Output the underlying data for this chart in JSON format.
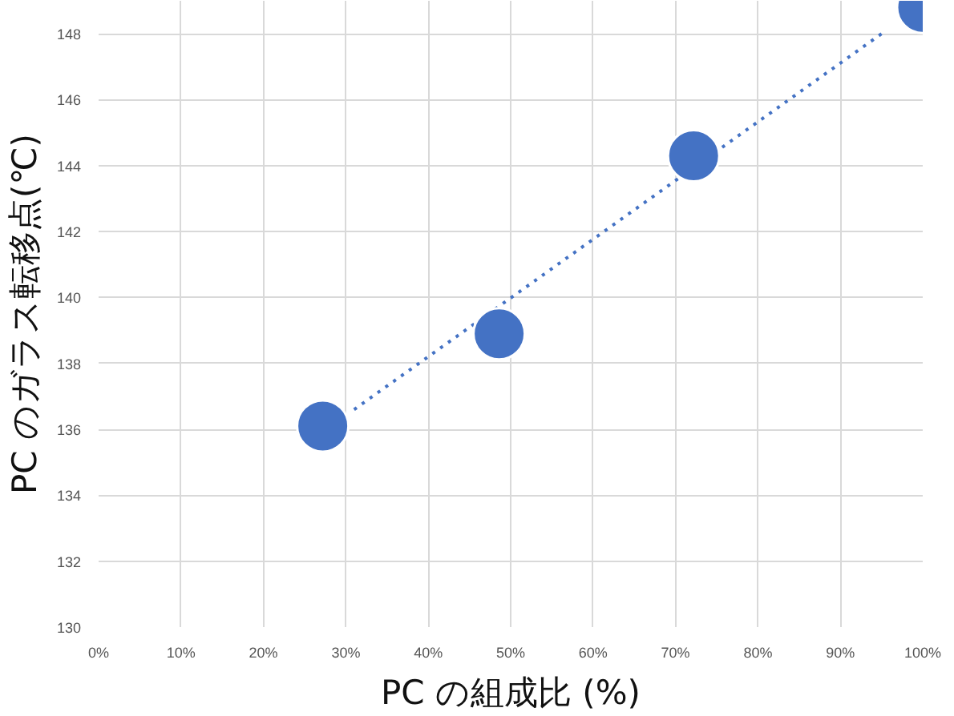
{
  "chart_data": {
    "type": "scatter",
    "xlabel": "PC の組成比 (%)",
    "ylabel": "PC のガラス転移点(℃)",
    "xlim": [
      0,
      100
    ],
    "ylim": [
      130,
      149
    ],
    "xticks": [
      {
        "value": 0,
        "label": "0%"
      },
      {
        "value": 10,
        "label": "10%"
      },
      {
        "value": 20,
        "label": "20%"
      },
      {
        "value": 30,
        "label": "30%"
      },
      {
        "value": 40,
        "label": "40%"
      },
      {
        "value": 50,
        "label": "50%"
      },
      {
        "value": 60,
        "label": "60%"
      },
      {
        "value": 70,
        "label": "70%"
      },
      {
        "value": 80,
        "label": "80%"
      },
      {
        "value": 90,
        "label": "90%"
      },
      {
        "value": 100,
        "label": "100%"
      }
    ],
    "yticks": [
      130,
      132,
      134,
      136,
      138,
      140,
      142,
      144,
      146,
      148
    ],
    "grid": true,
    "series": [
      {
        "type": "line",
        "color": "#4472c4",
        "x": [
          31,
          95
        ],
        "values": [
          136.6,
          148.0
        ],
        "line_style": "dotted",
        "marker": "none"
      },
      {
        "color": "#4472c4",
        "x": [
          27.2,
          48.6,
          72.2,
          100
        ],
        "values": [
          136.1,
          138.9,
          144.3,
          148.8
        ],
        "marker": "circle"
      }
    ]
  }
}
